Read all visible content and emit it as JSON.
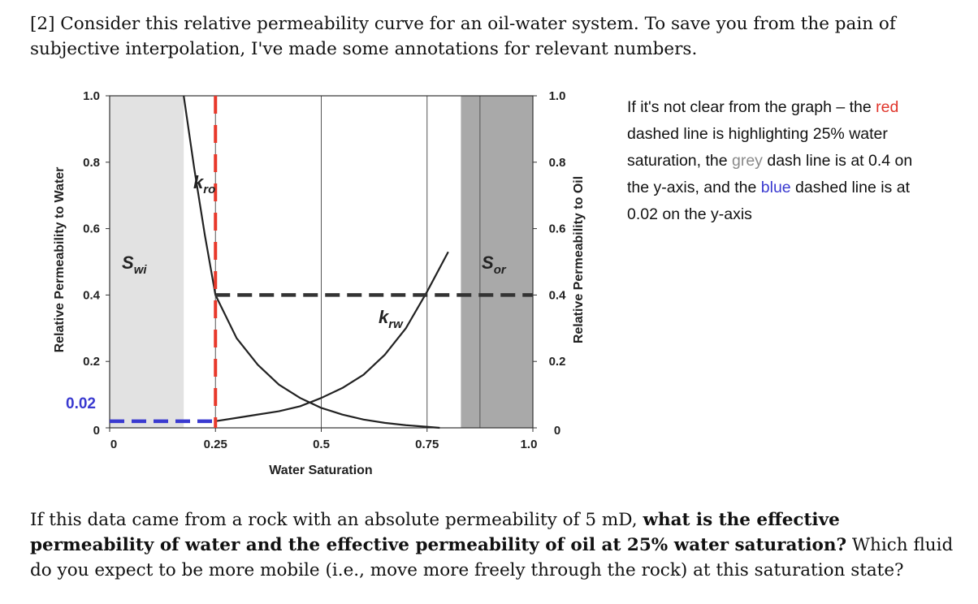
{
  "question": {
    "intro": "[2] Consider this relative permeability curve for an oil-water system. To save you from the pain of subjective interpolation, I've made some annotations for relevant numbers.",
    "main_prefix": "If this data came from a rock with an absolute permeability of 5 mD, ",
    "main_bold": "what is the effective permeability of water and the effective permeability of oil at 25% water saturation?",
    "main_suffix": " Which fluid do you expect to be more mobile (i.e., move more freely through the rock) at this saturation state?"
  },
  "side_note": {
    "part1": "If it's not clear from the graph – the ",
    "red": "red",
    "part2": " dashed line is highlighting 25% water saturation, the ",
    "grey": "grey",
    "part3": " dash line is at 0.4 on the y-axis, and the ",
    "blue": "blue",
    "part4": " dashed line is at 0.02 on the y-axis"
  },
  "chart_data": {
    "type": "line",
    "xlabel": "Water Saturation",
    "ylabel_left": "Relative Permeability to Water",
    "ylabel_right": "Relative Permeability to Oil",
    "xlim": [
      0,
      1.0
    ],
    "ylim": [
      0,
      1.0
    ],
    "x_ticks": [
      "0",
      "0.25",
      "0.5",
      "0.75",
      "1.0"
    ],
    "y_ticks_left": [
      "0",
      "0.2",
      "0.4",
      "0.6",
      "0.8",
      "1.0"
    ],
    "y_ticks_right": [
      "0",
      "0.2",
      "0.4",
      "0.6",
      "0.8",
      "1.0"
    ],
    "annotation_tick": "0.02",
    "regions": [
      {
        "name": "Swi",
        "label_main": "S",
        "label_sub": "wi",
        "x_range": [
          0,
          0.175
        ]
      },
      {
        "name": "Sor",
        "label_main": "S",
        "label_sub": "or",
        "x_range": [
          0.83,
          1.0
        ]
      }
    ],
    "series": [
      {
        "name": "kro",
        "label_main": "k",
        "label_sub": "ro",
        "x": [
          0.175,
          0.2,
          0.225,
          0.25,
          0.3,
          0.35,
          0.4,
          0.45,
          0.5,
          0.55,
          0.6,
          0.65,
          0.7,
          0.75,
          0.78
        ],
        "y": [
          1.0,
          0.78,
          0.58,
          0.4,
          0.27,
          0.19,
          0.13,
          0.09,
          0.06,
          0.04,
          0.025,
          0.015,
          0.008,
          0.003,
          0.0
        ]
      },
      {
        "name": "krw",
        "label_main": "k",
        "label_sub": "rw",
        "x": [
          0.25,
          0.3,
          0.35,
          0.4,
          0.45,
          0.5,
          0.55,
          0.6,
          0.65,
          0.7,
          0.75,
          0.8
        ],
        "y": [
          0.02,
          0.03,
          0.04,
          0.05,
          0.065,
          0.09,
          0.12,
          0.16,
          0.22,
          0.3,
          0.41,
          0.53
        ]
      }
    ],
    "guides": [
      {
        "name": "red-guide",
        "orientation": "vertical",
        "x": 0.25,
        "y_range": [
          0,
          1.0
        ],
        "color": "#e8392b"
      },
      {
        "name": "grey-guide",
        "orientation": "horizontal",
        "y": 0.4,
        "x_range": [
          0.25,
          1.0
        ],
        "color": "#333333"
      },
      {
        "name": "blue-guide",
        "orientation": "horizontal",
        "y": 0.02,
        "x_range": [
          0,
          0.25
        ],
        "color": "#3a3ad0"
      }
    ],
    "colors": {
      "swi_fill": "#e2e2e2",
      "sor_fill": "#a9a9a9",
      "curve": "#222222"
    }
  }
}
